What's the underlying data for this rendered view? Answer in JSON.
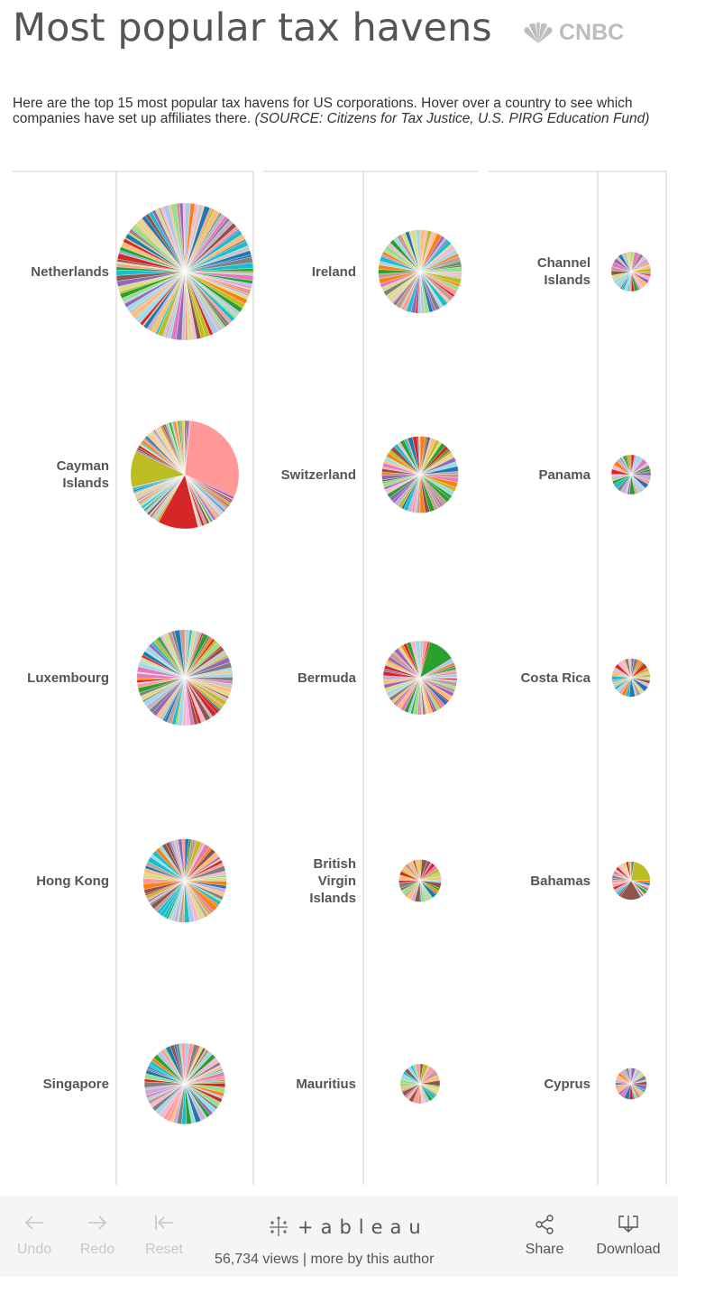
{
  "header": {
    "title": "Most popular tax havens",
    "brand": "CNBC",
    "description": "Here are the top 15 most popular tax havens for US corporations. Hover over a country to see which companies have set up affiliates there.",
    "source": "(SOURCE: Citizens for Tax Justice, U.S. PIRG Education Fund)"
  },
  "chart_data": {
    "type": "pie",
    "description_note": "",
    "countries": [
      {
        "name": "Netherlands",
        "column": 1,
        "row": 1,
        "relative_size": 1.0
      },
      {
        "name": "Cayman Islands",
        "column": 1,
        "row": 2,
        "relative_size": 0.79
      },
      {
        "name": "Luxembourg",
        "column": 1,
        "row": 3,
        "relative_size": 0.7
      },
      {
        "name": "Hong Kong",
        "column": 1,
        "row": 4,
        "relative_size": 0.61
      },
      {
        "name": "Singapore",
        "column": 1,
        "row": 5,
        "relative_size": 0.59
      },
      {
        "name": "Ireland",
        "column": 2,
        "row": 1,
        "relative_size": 0.61
      },
      {
        "name": "Switzerland",
        "column": 2,
        "row": 2,
        "relative_size": 0.56
      },
      {
        "name": "Bermuda",
        "column": 2,
        "row": 3,
        "relative_size": 0.54
      },
      {
        "name": "British Virgin Islands",
        "column": 2,
        "row": 4,
        "relative_size": 0.31
      },
      {
        "name": "Mauritius",
        "column": 2,
        "row": 5,
        "relative_size": 0.29
      },
      {
        "name": "Channel Islands",
        "column": 3,
        "row": 1,
        "relative_size": 0.29
      },
      {
        "name": "Panama",
        "column": 3,
        "row": 2,
        "relative_size": 0.29
      },
      {
        "name": "Costa Rica",
        "column": 3,
        "row": 3,
        "relative_size": 0.28
      },
      {
        "name": "Bahamas",
        "column": 3,
        "row": 4,
        "relative_size": 0.28
      },
      {
        "name": "Cyprus",
        "column": 3,
        "row": 5,
        "relative_size": 0.23
      }
    ],
    "palette": [
      "#1f77b4",
      "#aec7e8",
      "#ff7f0e",
      "#ffbb78",
      "#2ca02c",
      "#98df8a",
      "#d62728",
      "#ff9896",
      "#9467bd",
      "#c5b0d5",
      "#8c564b",
      "#c49c94",
      "#e377c2",
      "#f7b6d2",
      "#7f7f7f",
      "#c7c7c7",
      "#bcbd22",
      "#dbdb8d",
      "#17becf",
      "#9edae5"
    ],
    "dominant_slices": {
      "Cayman Islands": [
        {
          "color": "#ff9896",
          "share": 0.3
        },
        {
          "color": "#d62728",
          "share": 0.12
        },
        {
          "color": "#bcbd22",
          "share": 0.11
        }
      ],
      "Bermuda": [
        {
          "color": "#2ca02c",
          "share": 0.12
        }
      ],
      "Bahamas": [
        {
          "color": "#bcbd22",
          "share": 0.22
        },
        {
          "color": "#8c564b",
          "share": 0.18
        }
      ]
    }
  },
  "footer": {
    "undo": "Undo",
    "redo": "Redo",
    "reset": "Reset",
    "brand": "+ableau",
    "views": "56,734 views | more by this author",
    "share": "Share",
    "download": "Download"
  }
}
